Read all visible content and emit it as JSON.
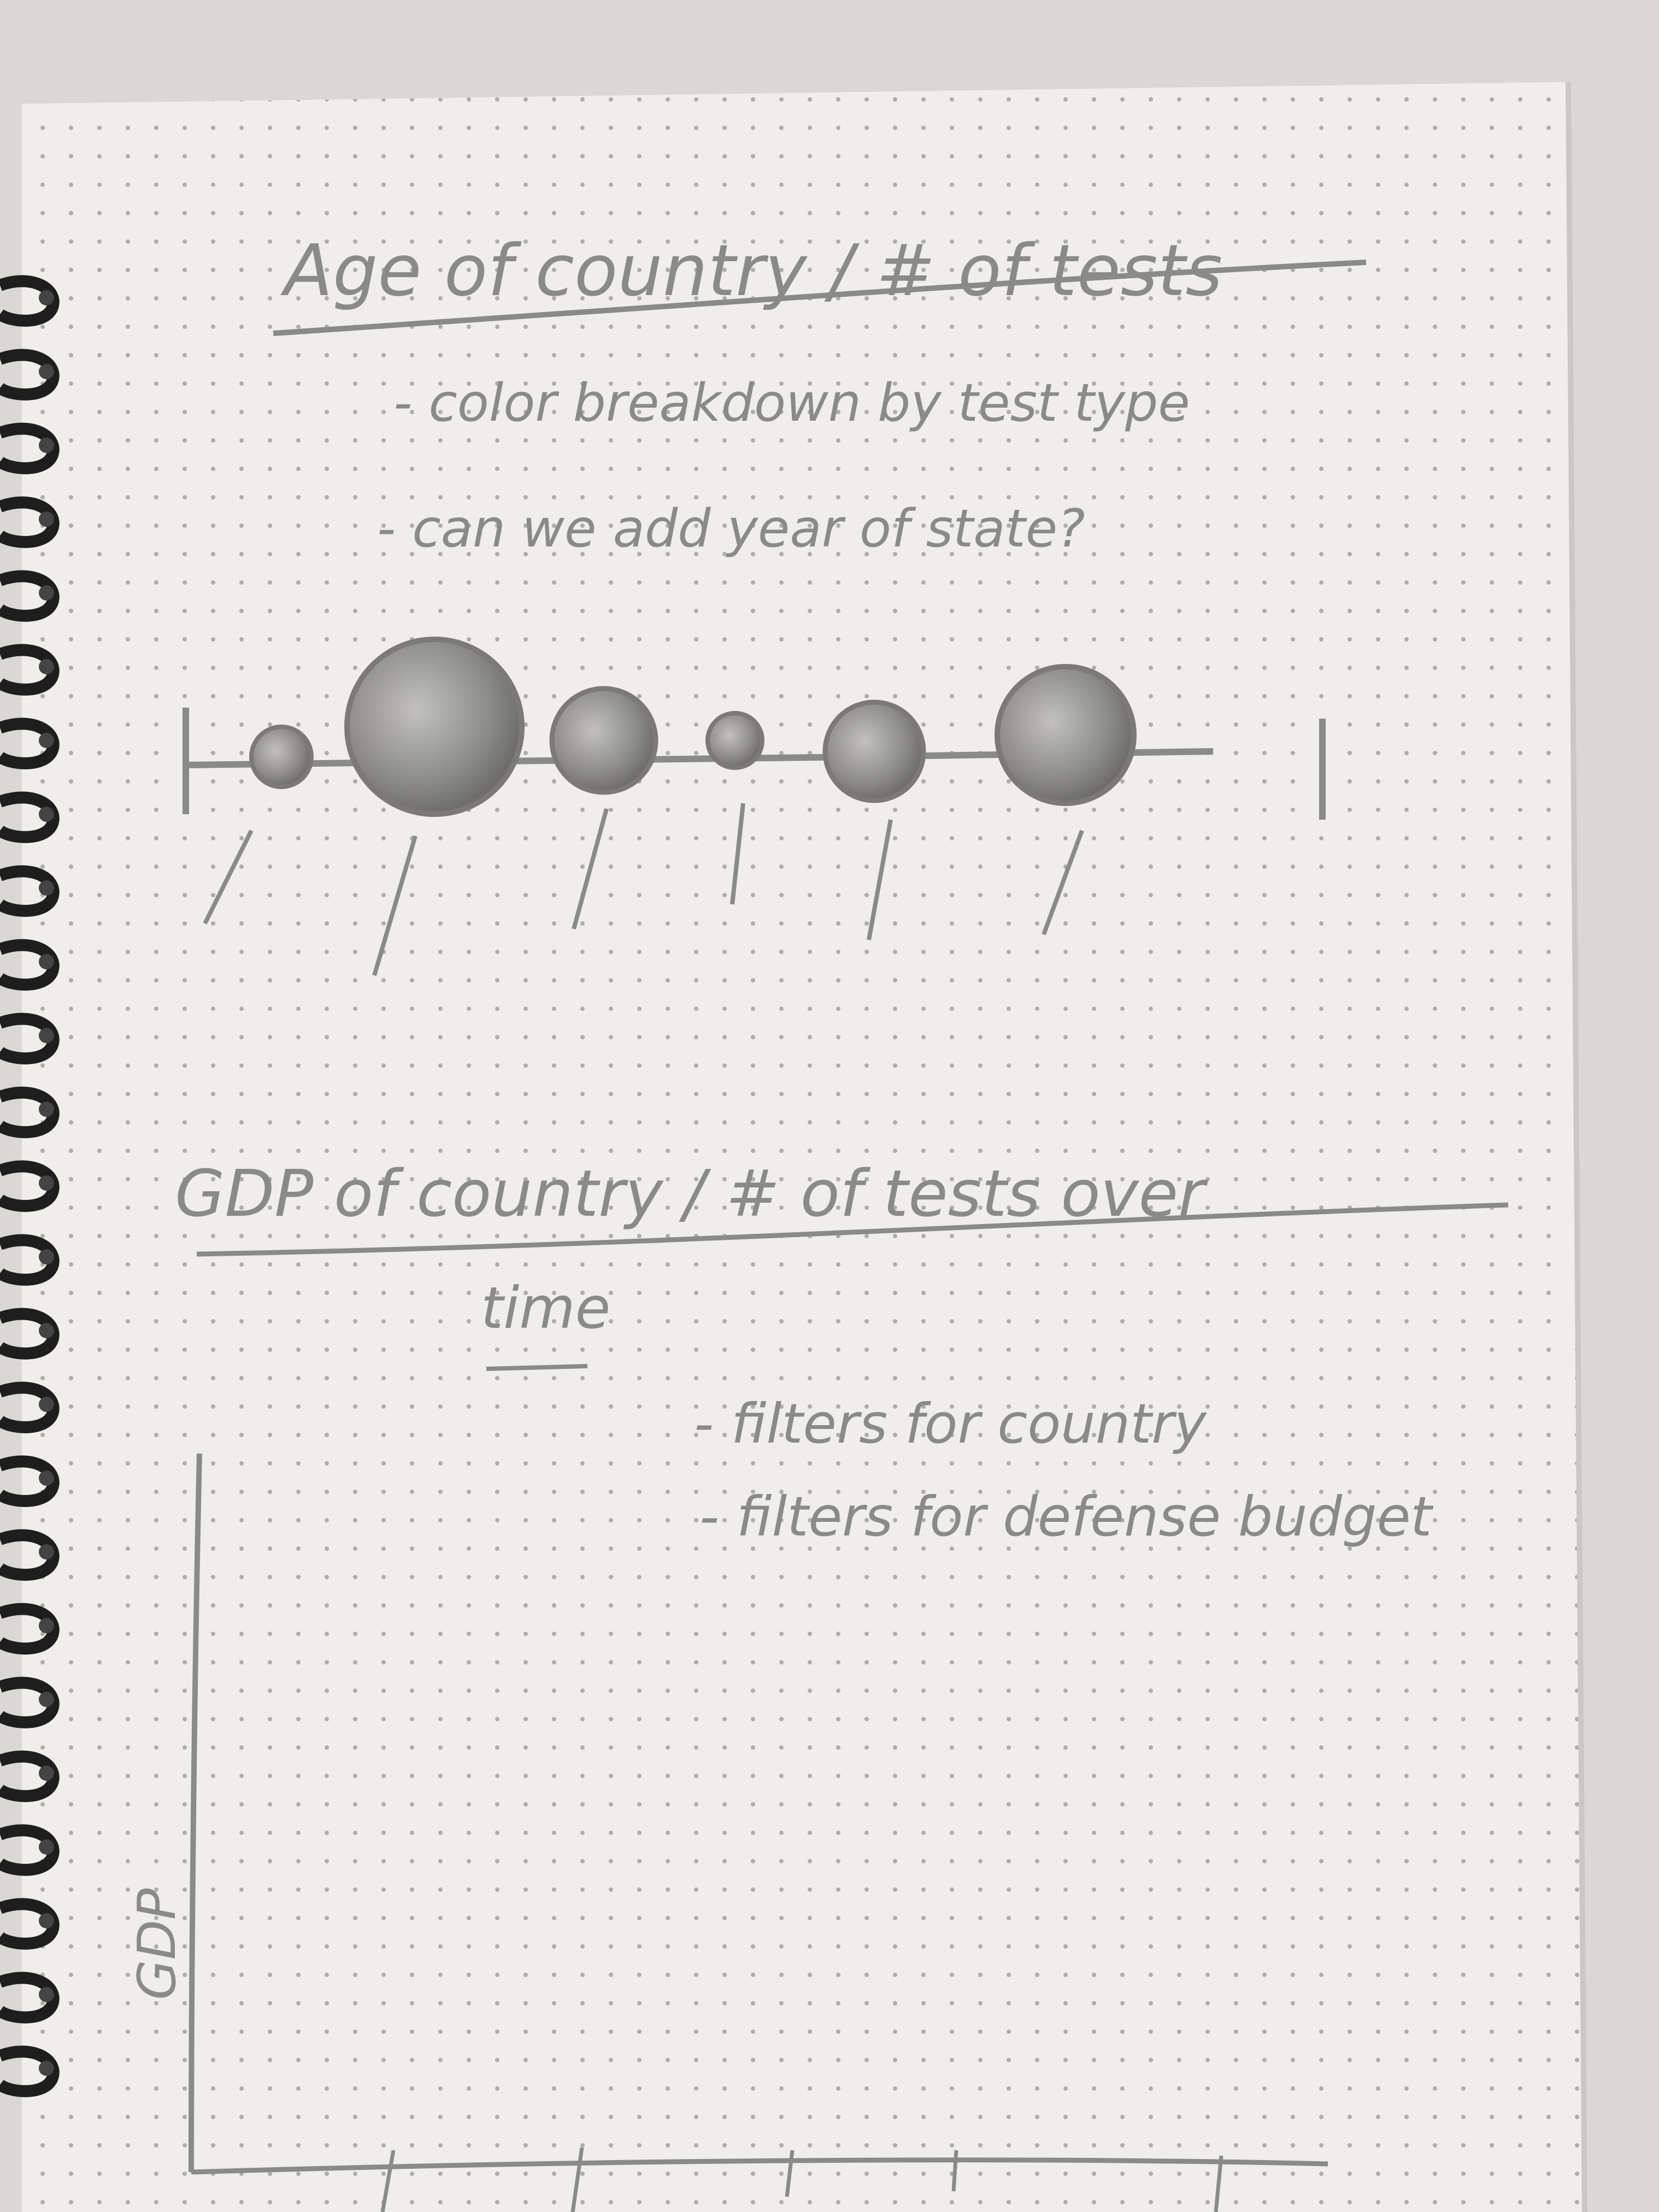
{
  "notebook": {
    "paper_color": "#efeeea",
    "dot_color": "#9d9c98",
    "pencil_color": "#8a8a88",
    "binding_color": "#1e1e1e",
    "background_color": "#d9d8d4"
  },
  "sketch1": {
    "title": "Age of country / # of tests",
    "notes": [
      "- color breakdown by test type",
      "- can we add year of state?"
    ]
  },
  "sketch2": {
    "title_line1": "GDP of country / # of tests over",
    "title_line2": "time",
    "notes": [
      "- filters for country",
      "- filters for defense budget"
    ],
    "y_axis_label": "GDP"
  }
}
